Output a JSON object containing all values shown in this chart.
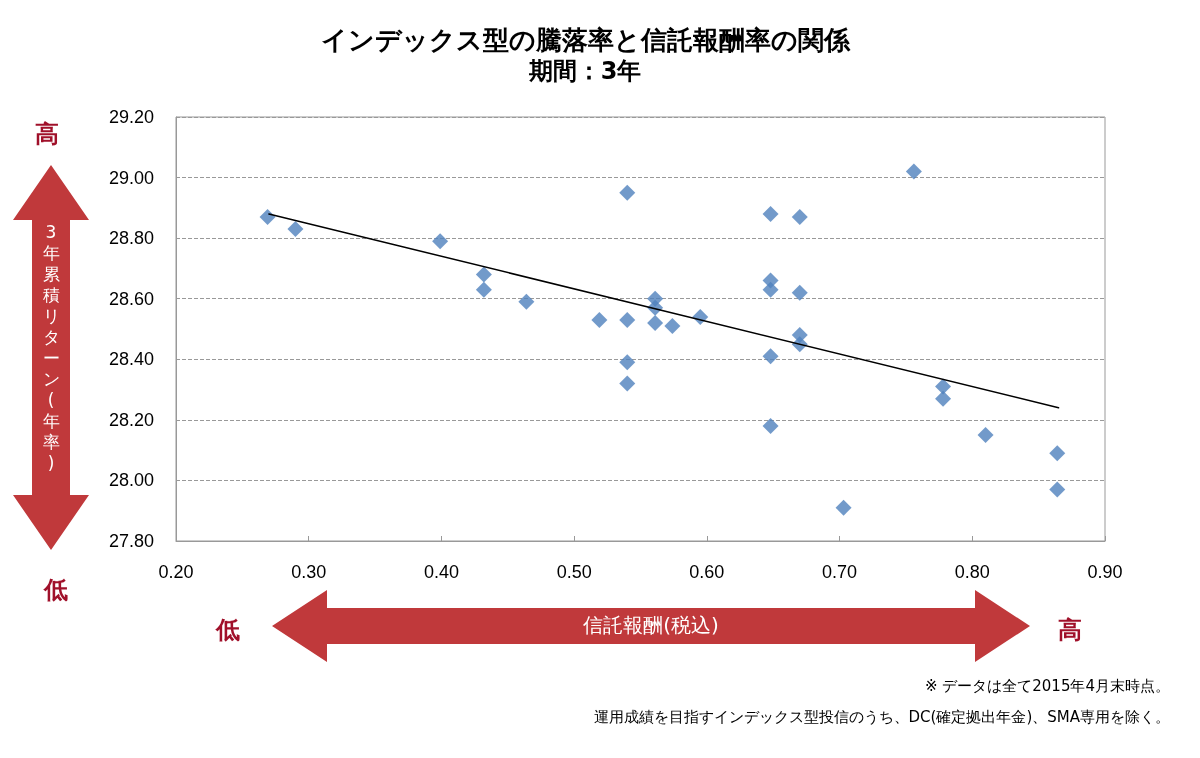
{
  "chart_data": {
    "type": "scatter",
    "title": "インデックス型の騰落率と信託報酬率の関係",
    "subtitle": "期間：3年",
    "xlabel": "信託報酬(税込)",
    "ylabel": "3年累積リターン(年率)",
    "annotations": [
      "高",
      "低",
      "低",
      "高",
      "※ データは全て2015年4月末時点。",
      "運用成績を目指すインデックス型投信のうち、DC(確定拠出年金)、SMA専用を除く。"
    ],
    "series": [
      {
        "color": "#4f81bd",
        "marker": "diamond",
        "x": [
          0.269,
          0.29,
          0.399,
          0.432,
          0.432,
          0.464,
          0.519,
          0.54,
          0.54,
          0.54,
          0.54,
          0.561,
          0.561,
          0.561,
          0.574,
          0.595,
          0.648,
          0.648,
          0.648,
          0.648,
          0.648,
          0.67,
          0.67,
          0.67,
          0.67,
          0.703,
          0.756,
          0.778,
          0.778,
          0.81,
          0.864,
          0.864
        ],
        "values": [
          28.87,
          28.83,
          28.79,
          28.68,
          28.63,
          28.59,
          28.53,
          28.53,
          28.95,
          28.39,
          28.32,
          28.6,
          28.57,
          28.52,
          28.51,
          28.54,
          28.88,
          28.66,
          28.63,
          28.41,
          28.18,
          28.87,
          28.62,
          28.48,
          28.45,
          27.91,
          29.02,
          28.31,
          28.27,
          28.15,
          28.09,
          27.97
        ]
      },
      {
        "type": "line",
        "color": "#000000",
        "marker": "none",
        "line_style": "solid",
        "x": [
          0.27,
          0.865
        ],
        "values": [
          28.88,
          28.24
        ]
      }
    ],
    "xlim": [
      0.2,
      0.9
    ],
    "xticks": [
      {
        "value": 0.2,
        "label": "0.20"
      },
      {
        "value": 0.3,
        "label": "0.30"
      },
      {
        "value": 0.4,
        "label": "0.40"
      },
      {
        "value": 0.5,
        "label": "0.50"
      },
      {
        "value": 0.6,
        "label": "0.60"
      },
      {
        "value": 0.7,
        "label": "0.70"
      },
      {
        "value": 0.8,
        "label": "0.80"
      },
      {
        "value": 0.9,
        "label": "0.90"
      }
    ],
    "ylim": [
      27.8,
      29.2
    ],
    "yticks": [
      {
        "value": 27.8,
        "label": "27.80"
      },
      {
        "value": 28.0,
        "label": "28.00"
      },
      {
        "value": 28.2,
        "label": "28.20"
      },
      {
        "value": 28.4,
        "label": "28.40"
      },
      {
        "value": 28.6,
        "label": "28.60"
      },
      {
        "value": 28.8,
        "label": "28.80"
      },
      {
        "value": 29.0,
        "label": "29.00"
      },
      {
        "value": 29.2,
        "label": "29.20"
      }
    ],
    "grid": "y"
  }
}
